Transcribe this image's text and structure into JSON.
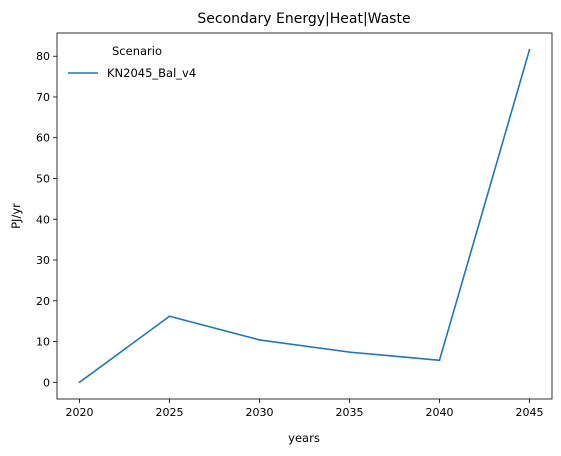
{
  "chart_data": {
    "type": "line",
    "title": "Secondary Energy|Heat|Waste",
    "xlabel": "years",
    "ylabel": "PJ/yr",
    "x": [
      2020,
      2025,
      2030,
      2035,
      2040,
      2045
    ],
    "xticks": [
      "2020",
      "2025",
      "2030",
      "2035",
      "2040",
      "2045"
    ],
    "yticks": [
      "0",
      "10",
      "20",
      "30",
      "40",
      "50",
      "60",
      "70",
      "80"
    ],
    "xlim": [
      2018.75,
      2046.25
    ],
    "ylim": [
      -4.1,
      85.7
    ],
    "series": [
      {
        "name": "KN2045_Bal_v4",
        "color": "#1f77b4",
        "values": [
          0,
          16.2,
          10.4,
          7.4,
          5.4,
          81.6
        ]
      }
    ],
    "legend": {
      "title": "Scenario",
      "placement": "top-left"
    },
    "grid": false
  }
}
